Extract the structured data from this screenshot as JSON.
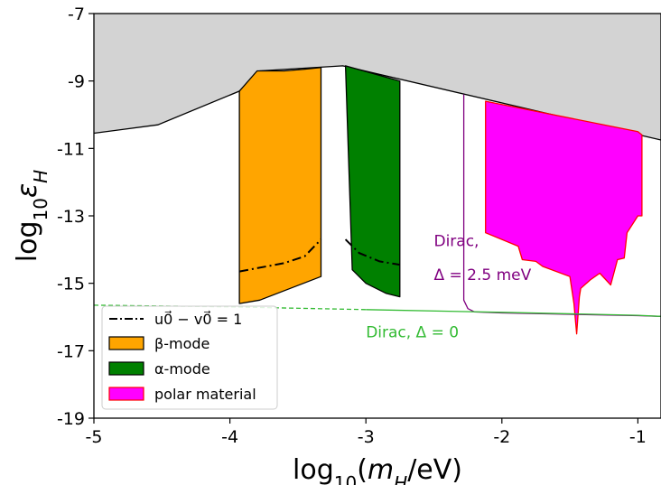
{
  "chart_data": {
    "type": "area",
    "xlabel": "log10(mH/eV)",
    "ylabel": "log10εH",
    "xlim": [
      -5,
      -0.83
    ],
    "ylim": [
      -19,
      -7
    ],
    "xticks": [
      -5,
      -4,
      -3,
      -2,
      -1
    ],
    "yticks": [
      -19,
      -17,
      -15,
      -13,
      -11,
      -9,
      -7
    ],
    "grid": false,
    "legend_position": "lower-left",
    "colors": {
      "excluded": "#d3d3d3",
      "beta": "#ffa500",
      "alpha": "#008000",
      "polar": "#ff00ff",
      "polar_edge": "#ff0000",
      "dirac_gap": "#800080",
      "dirac_zero": "#33bb33"
    },
    "legend": [
      {
        "key": "line",
        "label": "u0⃗ − v0⃗ = 1",
        "latex": true
      },
      {
        "key": "beta",
        "label": "β-mode"
      },
      {
        "key": "alpha",
        "label": "α-mode"
      },
      {
        "key": "polar",
        "label": "polar material"
      }
    ],
    "series": [
      {
        "key": "excluded",
        "kind": "fill",
        "x": [
          -5,
          -4.53,
          -3.93,
          -3.78,
          -3.17,
          -0.83
        ],
        "y": [
          -10.55,
          -10.3,
          -9.3,
          -8.7,
          -8.55,
          -10.75
        ]
      },
      {
        "key": "beta",
        "kind": "polygon",
        "x": [
          -3.93,
          -3.93,
          -3.78,
          -3.33,
          -3.33,
          -3.45,
          -3.6,
          -3.8,
          -3.93
        ],
        "y": [
          -9.3,
          -15.6,
          -15.5,
          -14.8,
          -8.6,
          -8.65,
          -8.7,
          -8.7,
          -9.3
        ]
      },
      {
        "key": "alpha",
        "kind": "polygon",
        "x": [
          -3.15,
          -2.75,
          -2.75,
          -2.85,
          -3.0,
          -3.1,
          -3.15
        ],
        "y": [
          -8.55,
          -9.0,
          -15.4,
          -15.3,
          -15.0,
          -14.6,
          -8.55
        ]
      },
      {
        "key": "polar",
        "kind": "polygon",
        "x": [
          -2.12,
          -2.12,
          -1.88,
          -1.85,
          -1.75,
          -1.7,
          -1.5,
          -1.47,
          -1.45,
          -1.43,
          -1.42,
          -1.35,
          -1.28,
          -1.2,
          -1.15,
          -1.1,
          -1.08,
          -1.0,
          -0.97,
          -0.97,
          -1.0,
          -2.12
        ],
        "y": [
          -9.6,
          -13.5,
          -13.9,
          -14.3,
          -14.35,
          -14.5,
          -14.8,
          -15.6,
          -16.5,
          -15.4,
          -15.15,
          -14.9,
          -14.7,
          -15.05,
          -14.3,
          -14.25,
          -13.5,
          -13.0,
          -13.0,
          -10.6,
          -10.5,
          -9.6
        ]
      },
      {
        "key": "line",
        "kind": "dashdot",
        "segments": [
          {
            "x": [
              -3.93,
              -3.8,
              -3.6,
              -3.45,
              -3.33
            ],
            "y": [
              -14.65,
              -14.55,
              -14.4,
              -14.2,
              -13.7
            ]
          },
          {
            "x": [
              -3.15,
              -3.05,
              -2.9,
              -2.75
            ],
            "y": [
              -13.7,
              -14.1,
              -14.35,
              -14.45
            ]
          }
        ]
      },
      {
        "key": "dirac_gap",
        "kind": "line",
        "x": [
          -2.28,
          -2.28,
          -2.25,
          -2.2,
          -2.0,
          -1.5,
          -1.0,
          -0.83
        ],
        "y": [
          -9.4,
          -15.5,
          -15.75,
          -15.85,
          -15.88,
          -15.92,
          -15.96,
          -15.98
        ]
      },
      {
        "key": "dirac_zero",
        "kind": "line",
        "dashed_until_x": -3.0,
        "x": [
          -5,
          -4.0,
          -3.0,
          -2.0,
          -1.0,
          -0.83
        ],
        "y": [
          -15.65,
          -15.7,
          -15.78,
          -15.86,
          -15.95,
          -15.98
        ]
      }
    ],
    "annotations": [
      {
        "key": "dirac_gap",
        "line1": "Dirac,",
        "line2": "Δ = 2.5 meV",
        "x": -2.5,
        "y1": -13.9,
        "y2": -14.9
      },
      {
        "key": "dirac_zero",
        "text": "Dirac, Δ = 0",
        "x": -3.0,
        "y": -16.6
      }
    ]
  }
}
